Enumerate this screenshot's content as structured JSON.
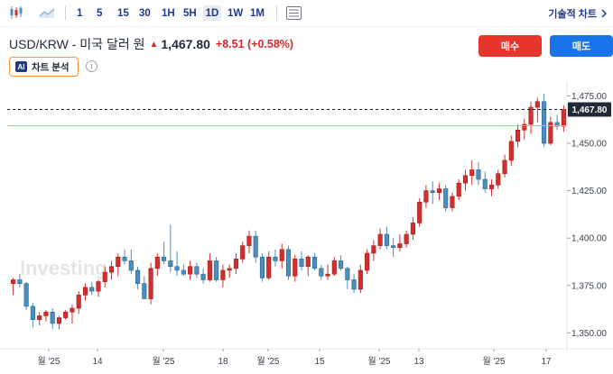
{
  "toolbar": {
    "icons": [
      "candlestick-icon",
      "area-chart-icon",
      "indicators-icon"
    ],
    "timeframes": [
      "1",
      "5",
      "15",
      "30",
      "1H",
      "5H",
      "1D",
      "1W",
      "1M"
    ],
    "active_timeframe": "1D",
    "technical_chart_label": "기술적 차트"
  },
  "quote": {
    "name": "USD/KRW - 미국 달러 원",
    "price": "1,467.80",
    "change": "+8.51 (+0.58%)",
    "direction": "up"
  },
  "actions": {
    "buy_label": "매수",
    "sell_label": "매도"
  },
  "analysis": {
    "badge": "AI",
    "label": "차트 분석"
  },
  "colors": {
    "up": "#d32f2f",
    "down": "#4a8fc1",
    "buy": "#e5352c",
    "sell": "#1a73e8",
    "price_line": "#f4a582"
  },
  "watermark": {
    "text": "Investing",
    "suffix": ".com"
  },
  "chart_data": {
    "type": "candlestick",
    "price_axis": [
      "1,475.00",
      "1,450.00",
      "1,425.00",
      "1,400.00",
      "1,375.00",
      "1,350.00"
    ],
    "ylim": [
      1344,
      1479
    ],
    "time_axis": [
      "월 '25",
      "14",
      "월 '25",
      "18",
      "월 '25",
      "15",
      "월 '25",
      "13",
      "월 '25",
      "17"
    ],
    "current_price": 1467.8,
    "current_price_label": "1,467.80",
    "reference_price": 1459.3,
    "candles": [
      [
        1376,
        1379,
        1370,
        1378
      ],
      [
        1378,
        1381,
        1374,
        1376
      ],
      [
        1376,
        1377,
        1362,
        1364
      ],
      [
        1364,
        1366,
        1353,
        1357
      ],
      [
        1357,
        1361,
        1354,
        1359
      ],
      [
        1359,
        1362,
        1356,
        1361
      ],
      [
        1361,
        1363,
        1352,
        1355
      ],
      [
        1355,
        1359,
        1352,
        1358
      ],
      [
        1358,
        1362,
        1357,
        1361
      ],
      [
        1361,
        1365,
        1355,
        1363
      ],
      [
        1363,
        1372,
        1360,
        1370
      ],
      [
        1370,
        1376,
        1367,
        1374
      ],
      [
        1374,
        1377,
        1370,
        1372
      ],
      [
        1372,
        1378,
        1369,
        1377
      ],
      [
        1377,
        1385,
        1374,
        1382
      ],
      [
        1382,
        1388,
        1378,
        1385
      ],
      [
        1385,
        1392,
        1380,
        1390
      ],
      [
        1390,
        1394,
        1386,
        1388
      ],
      [
        1388,
        1394,
        1381,
        1383
      ],
      [
        1383,
        1385,
        1373,
        1376
      ],
      [
        1376,
        1380,
        1368,
        1368
      ],
      [
        1368,
        1387,
        1365,
        1384
      ],
      [
        1384,
        1392,
        1380,
        1390
      ],
      [
        1390,
        1398,
        1386,
        1388
      ],
      [
        1388,
        1407,
        1382,
        1385
      ],
      [
        1385,
        1393,
        1380,
        1383
      ],
      [
        1383,
        1386,
        1380,
        1381
      ],
      [
        1381,
        1388,
        1378,
        1385
      ],
      [
        1385,
        1387,
        1379,
        1381
      ],
      [
        1381,
        1384,
        1376,
        1378
      ],
      [
        1378,
        1392,
        1377,
        1388
      ],
      [
        1388,
        1390,
        1377,
        1378
      ],
      [
        1378,
        1386,
        1374,
        1383
      ],
      [
        1383,
        1386,
        1379,
        1384
      ],
      [
        1384,
        1392,
        1381,
        1389
      ],
      [
        1389,
        1398,
        1387,
        1396
      ],
      [
        1396,
        1404,
        1392,
        1401
      ],
      [
        1401,
        1404,
        1387,
        1390
      ],
      [
        1390,
        1392,
        1377,
        1379
      ],
      [
        1379,
        1393,
        1378,
        1390
      ],
      [
        1390,
        1394,
        1385,
        1388
      ],
      [
        1388,
        1397,
        1384,
        1394
      ],
      [
        1394,
        1396,
        1378,
        1380
      ],
      [
        1380,
        1391,
        1377,
        1389
      ],
      [
        1389,
        1393,
        1383,
        1385
      ],
      [
        1385,
        1391,
        1380,
        1390
      ],
      [
        1390,
        1392,
        1383,
        1384
      ],
      [
        1384,
        1386,
        1378,
        1380
      ],
      [
        1380,
        1386,
        1378,
        1381
      ],
      [
        1381,
        1390,
        1380,
        1388
      ],
      [
        1388,
        1391,
        1383,
        1384
      ],
      [
        1384,
        1385,
        1373,
        1378
      ],
      [
        1378,
        1381,
        1371,
        1373
      ],
      [
        1373,
        1386,
        1371,
        1383
      ],
      [
        1383,
        1394,
        1381,
        1392
      ],
      [
        1392,
        1399,
        1388,
        1396
      ],
      [
        1396,
        1405,
        1394,
        1402
      ],
      [
        1402,
        1406,
        1394,
        1396
      ],
      [
        1396,
        1400,
        1390,
        1395
      ],
      [
        1395,
        1402,
        1393,
        1397
      ],
      [
        1397,
        1404,
        1395,
        1402
      ],
      [
        1402,
        1411,
        1399,
        1408
      ],
      [
        1408,
        1421,
        1406,
        1419
      ],
      [
        1419,
        1428,
        1416,
        1425
      ],
      [
        1425,
        1430,
        1418,
        1424
      ],
      [
        1424,
        1429,
        1420,
        1426
      ],
      [
        1426,
        1428,
        1414,
        1416
      ],
      [
        1416,
        1424,
        1414,
        1422
      ],
      [
        1422,
        1431,
        1420,
        1429
      ],
      [
        1429,
        1436,
        1425,
        1433
      ],
      [
        1433,
        1441,
        1428,
        1436
      ],
      [
        1436,
        1440,
        1428,
        1431
      ],
      [
        1431,
        1435,
        1424,
        1426
      ],
      [
        1426,
        1431,
        1422,
        1428
      ],
      [
        1428,
        1436,
        1426,
        1434
      ],
      [
        1434,
        1444,
        1432,
        1441
      ],
      [
        1441,
        1454,
        1438,
        1451
      ],
      [
        1451,
        1460,
        1448,
        1457
      ],
      [
        1457,
        1463,
        1452,
        1460
      ],
      [
        1460,
        1472,
        1455,
        1469
      ],
      [
        1469,
        1474,
        1461,
        1472
      ],
      [
        1472,
        1476,
        1448,
        1450
      ],
      [
        1450,
        1464,
        1449,
        1461
      ],
      [
        1461,
        1465,
        1457,
        1459
      ],
      [
        1459,
        1470,
        1456,
        1467.8
      ]
    ]
  }
}
